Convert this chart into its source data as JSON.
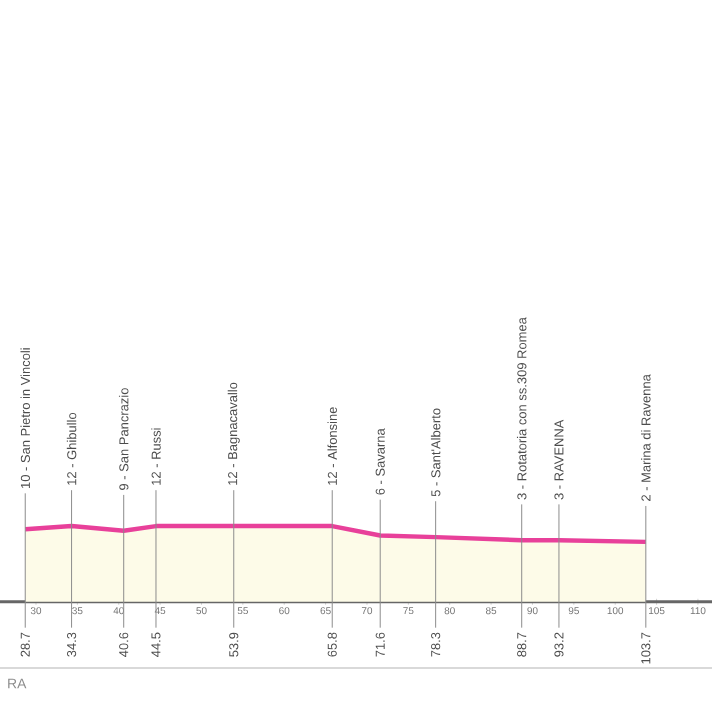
{
  "chart_data": {
    "type": "area",
    "color": "#e8409a",
    "x": [
      28.7,
      34.3,
      40.6,
      44.5,
      53.9,
      65.8,
      71.6,
      78.3,
      88.7,
      93.2,
      103.7
    ],
    "values": [
      10,
      12,
      9,
      12,
      12,
      12,
      6,
      5,
      3,
      3,
      2
    ],
    "value_labels": [
      "10 - San Pietro in Vincoli",
      "12 - Ghibullo",
      "9 - San Pancrazio",
      "12 - Russi",
      "12 - Bagnacavallo",
      "12 - Alfonsine",
      "6 - Savarna",
      "5 - Sant'Alberto",
      "3 - Rotatoria con ss.309 Romea",
      "3 - RAVENNA",
      "2 - Marina di Ravenna"
    ],
    "xlim": [
      25.65,
      111.7
    ],
    "xticks": [
      30,
      35,
      40,
      45,
      50,
      55,
      60,
      65,
      70,
      75,
      80,
      85,
      90,
      95,
      100,
      105,
      110
    ],
    "tick_labels": "x",
    "annotations": [
      {
        "text": "28.7",
        "x": 28.7,
        "y": 10
      },
      {
        "text": "34.3",
        "x": 34.3,
        "y": 12
      },
      {
        "text": "40.6",
        "x": 40.6,
        "y": 9
      },
      {
        "text": "44.5",
        "x": 44.5,
        "y": 12
      },
      {
        "text": "53.9",
        "x": 53.9,
        "y": 12
      },
      {
        "text": "65.8",
        "x": 65.8,
        "y": 12
      },
      {
        "text": "71.6",
        "x": 71.6,
        "y": 6
      },
      {
        "text": "78.3",
        "x": 78.3,
        "y": 5
      },
      {
        "text": "88.7",
        "x": 88.7,
        "y": 3
      },
      {
        "text": "93.2",
        "x": 93.2,
        "y": 3
      },
      {
        "text": "103.7",
        "x": 103.7,
        "y": 2
      },
      "RA"
    ]
  }
}
